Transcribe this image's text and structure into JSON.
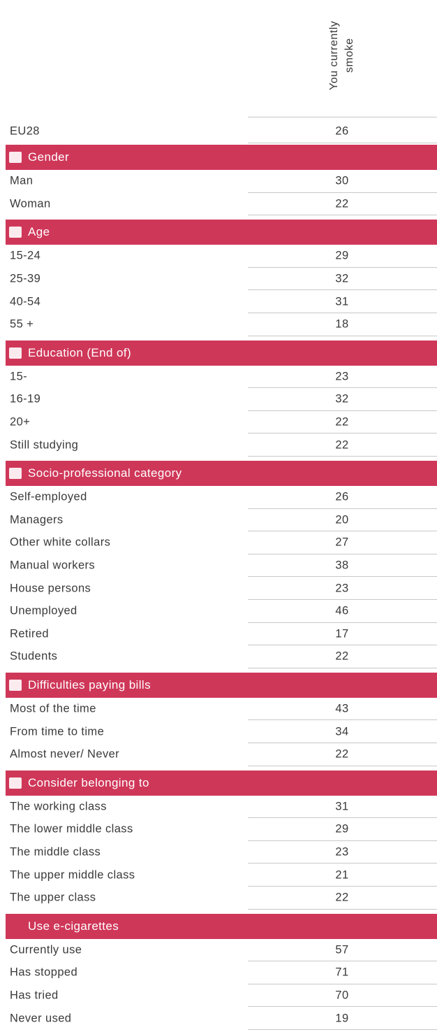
{
  "header": {
    "column_label": "You currently smoke"
  },
  "table": {
    "total": {
      "label": "EU28",
      "value": 26
    },
    "sections": [
      {
        "title": "Gender",
        "rows": [
          {
            "label": "Man",
            "value": 30
          },
          {
            "label": "Woman",
            "value": 22
          }
        ]
      },
      {
        "title": "Age",
        "rows": [
          {
            "label": "15-24",
            "value": 29
          },
          {
            "label": "25-39",
            "value": 32
          },
          {
            "label": "40-54",
            "value": 31
          },
          {
            "label": "55 +",
            "value": 18
          }
        ]
      },
      {
        "title": "Education (End of)",
        "rows": [
          {
            "label": "15-",
            "value": 23
          },
          {
            "label": "16-19",
            "value": 32
          },
          {
            "label": "20+",
            "value": 22
          },
          {
            "label": "Still studying",
            "value": 22
          }
        ]
      },
      {
        "title": "Socio-professional category",
        "rows": [
          {
            "label": "Self-employed",
            "value": 26
          },
          {
            "label": "Managers",
            "value": 20
          },
          {
            "label": "Other white collars",
            "value": 27
          },
          {
            "label": "Manual workers",
            "value": 38
          },
          {
            "label": "House persons",
            "value": 23
          },
          {
            "label": "Unemployed",
            "value": 46
          },
          {
            "label": "Retired",
            "value": 17
          },
          {
            "label": "Students",
            "value": 22
          }
        ]
      },
      {
        "title": "Difficulties paying bills",
        "rows": [
          {
            "label": "Most of the time",
            "value": 43
          },
          {
            "label": "From time to time",
            "value": 34
          },
          {
            "label": "Almost never/ Never",
            "value": 22
          }
        ]
      },
      {
        "title": "Consider belonging to",
        "rows": [
          {
            "label": "The working class",
            "value": 31
          },
          {
            "label": "The lower middle class",
            "value": 29
          },
          {
            "label": "The middle class",
            "value": 23
          },
          {
            "label": "The upper middle class",
            "value": 21
          },
          {
            "label": "The upper class",
            "value": 22
          }
        ]
      },
      {
        "title": "Use e-cigarettes",
        "rows": [
          {
            "label": "Currently use",
            "value": 57
          },
          {
            "label": "Has stopped",
            "value": 71
          },
          {
            "label": "Has tried",
            "value": 70
          },
          {
            "label": "Never used",
            "value": 19
          }
        ]
      }
    ]
  }
}
